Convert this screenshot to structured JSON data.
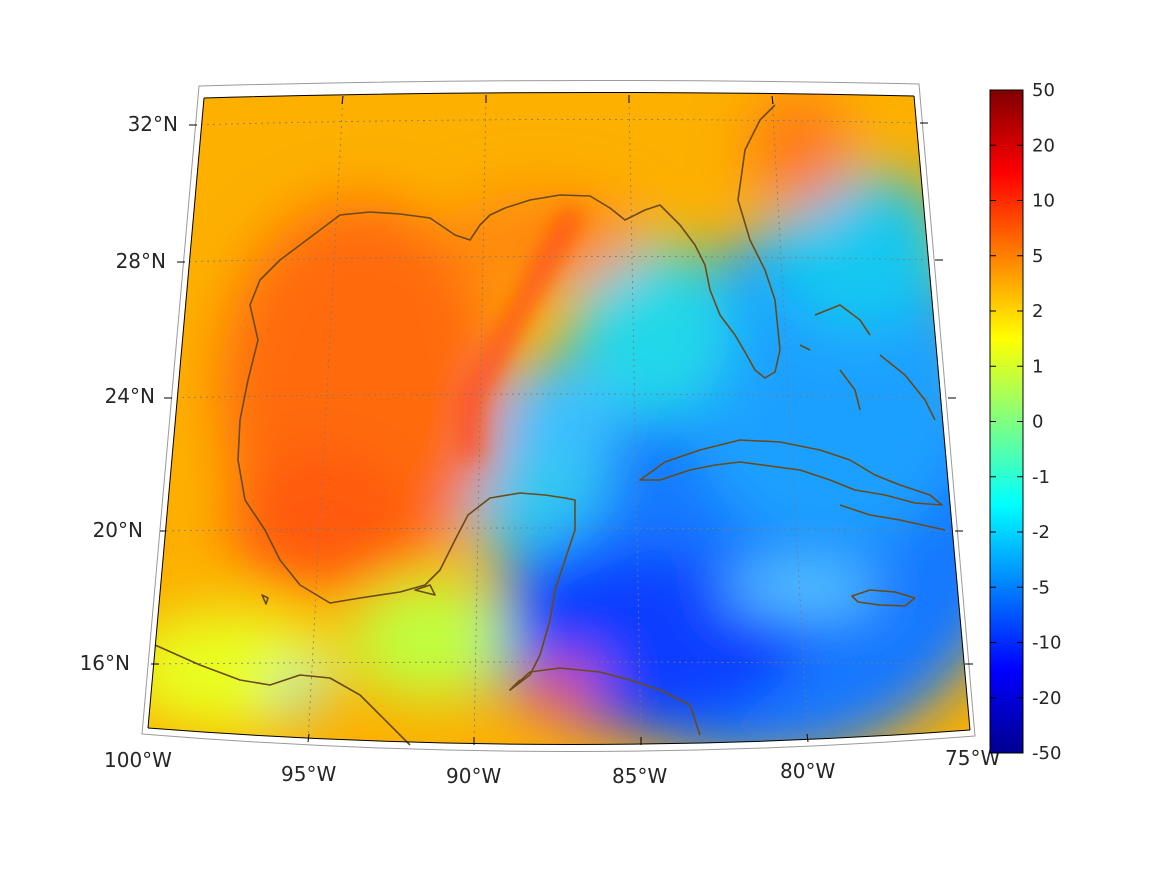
{
  "map": {
    "projection": "conic",
    "lon_range": [
      -100,
      -75
    ],
    "lat_range": [
      14,
      33
    ],
    "lon_ticks": [
      {
        "value": -100,
        "label": "100°W"
      },
      {
        "value": -95,
        "label": "95°W"
      },
      {
        "value": -90,
        "label": "90°W"
      },
      {
        "value": -85,
        "label": "85°W"
      },
      {
        "value": -80,
        "label": "80°W"
      },
      {
        "value": -75,
        "label": "75°W"
      }
    ],
    "lat_ticks": [
      {
        "value": 32,
        "label": "32°N"
      },
      {
        "value": 28,
        "label": "28°N"
      },
      {
        "value": 24,
        "label": "24°N"
      },
      {
        "value": 20,
        "label": "20°N"
      },
      {
        "value": 16,
        "label": "16°N"
      }
    ],
    "grid": true,
    "coastline_color": "#6b4a1a",
    "colormap": "jet"
  },
  "colorbar": {
    "placement": "right",
    "ticks": [
      "50",
      "20",
      "10",
      "5",
      "2",
      "1",
      "0",
      "-1",
      "-2",
      "-5",
      "-10",
      "-20",
      "-50"
    ],
    "colors": [
      "#7f0000",
      "#ff0000",
      "#ff8000",
      "#ffff00",
      "#80ff80",
      "#00ffff",
      "#0080ff",
      "#0000ff",
      "#00008f"
    ]
  }
}
